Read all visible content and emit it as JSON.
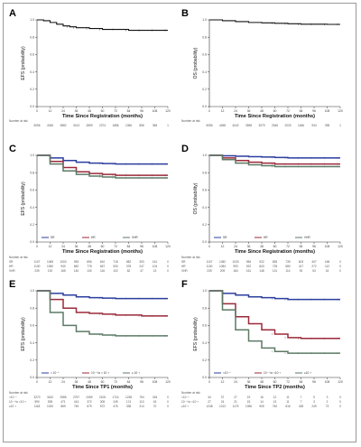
{
  "colors": {
    "black": "#111111",
    "blue": "#2b3f9e",
    "red": "#9b2a3a",
    "green": "#5c7a66",
    "gray": "#777777"
  },
  "chart_data": [
    {
      "panel": "A",
      "type": "line",
      "ylabel": "EFS (probability)",
      "xlabel": "Time Since Registration (months)",
      "ylim": [
        0,
        1
      ],
      "xlim": [
        0,
        120
      ],
      "x_ticks": [
        "0",
        "12",
        "24",
        "36",
        "48",
        "60",
        "72",
        "84",
        "96",
        "108",
        "120"
      ],
      "y_ticks": [
        "0.0",
        "0.2",
        "0.4",
        "0.6",
        "0.8",
        "1.0"
      ],
      "series": [
        {
          "color": "black",
          "x": [
            0,
            6,
            12,
            18,
            24,
            30,
            36,
            48,
            60,
            72,
            84,
            96,
            108,
            120
          ],
          "y": [
            1.0,
            0.99,
            0.97,
            0.95,
            0.93,
            0.92,
            0.91,
            0.9,
            0.89,
            0.89,
            0.88,
            0.88,
            0.88,
            0.88
          ]
        }
      ],
      "risk_title": "Number at risk",
      "risk_rows": [
        {
          "label": "",
          "values": [
            "5056",
            "4346",
            "3882",
            "3413",
            "2899",
            "2374",
            "1886",
            "1356",
            "856",
            "365",
            "1"
          ]
        }
      ]
    },
    {
      "panel": "B",
      "type": "line",
      "ylabel": "OS (probability)",
      "xlabel": "Time Since Registration (months)",
      "ylim": [
        0,
        1
      ],
      "xlim": [
        0,
        120
      ],
      "x_ticks": [
        "0",
        "12",
        "24",
        "36",
        "48",
        "60",
        "72",
        "84",
        "96",
        "108",
        "120"
      ],
      "y_ticks": [
        "0.0",
        "0.2",
        "0.4",
        "0.6",
        "0.8",
        "1.0"
      ],
      "series": [
        {
          "color": "black",
          "x": [
            0,
            12,
            24,
            36,
            48,
            60,
            72,
            84,
            96,
            108,
            120
          ],
          "y": [
            1.0,
            0.99,
            0.98,
            0.97,
            0.965,
            0.96,
            0.955,
            0.95,
            0.95,
            0.948,
            0.948
          ]
        }
      ],
      "risk_title": "Number at risk",
      "risk_rows": [
        {
          "label": "",
          "values": [
            "5056",
            "4458",
            "4042",
            "3598",
            "3079",
            "2546",
            "2025",
            "1466",
            "934",
            "398",
            "1"
          ]
        }
      ]
    },
    {
      "panel": "C",
      "type": "line",
      "ylabel": "EFS (probability)",
      "xlabel": "Time Since Registration (months)",
      "ylim": [
        0,
        1
      ],
      "xlim": [
        0,
        120
      ],
      "x_ticks": [
        "0",
        "12",
        "24",
        "36",
        "48",
        "60",
        "72",
        "84",
        "96",
        "108",
        "120"
      ],
      "y_ticks": [
        "0.0",
        "0.2",
        "0.4",
        "0.6",
        "0.8",
        "1.0"
      ],
      "legend": [
        "SR",
        "HR",
        "VHR"
      ],
      "series": [
        {
          "color": "blue",
          "x": [
            0,
            12,
            24,
            36,
            48,
            60,
            72,
            84,
            96,
            108,
            120
          ],
          "y": [
            1.0,
            0.97,
            0.94,
            0.92,
            0.91,
            0.905,
            0.9,
            0.9,
            0.9,
            0.9,
            0.9
          ]
        },
        {
          "color": "red",
          "x": [
            0,
            12,
            24,
            36,
            48,
            60,
            72,
            84,
            96,
            108,
            120
          ],
          "y": [
            1.0,
            0.93,
            0.86,
            0.81,
            0.79,
            0.78,
            0.77,
            0.77,
            0.77,
            0.77,
            0.77
          ]
        },
        {
          "color": "green",
          "x": [
            0,
            12,
            24,
            36,
            48,
            60,
            72,
            84,
            96,
            108,
            120
          ],
          "y": [
            1.0,
            0.9,
            0.82,
            0.78,
            0.76,
            0.75,
            0.74,
            0.74,
            0.74,
            0.74,
            0.74
          ]
        }
      ],
      "risk_title": "Number at risk",
      "risk_rows": [
        {
          "label": "SR",
          "values": [
            "1107",
            "1065",
            "1003",
            "953",
            "896",
            "810",
            "718",
            "582",
            "393",
            "161",
            "0"
          ]
        },
        {
          "label": "HR",
          "values": [
            "1130",
            "1050",
            "940",
            "862",
            "778",
            "667",
            "530",
            "378",
            "247",
            "104",
            "0"
          ]
        },
        {
          "label": "VHR",
          "values": [
            "239",
            "192",
            "165",
            "140",
            "130",
            "116",
            "102",
            "82",
            "47",
            "13",
            "0"
          ]
        }
      ]
    },
    {
      "panel": "D",
      "type": "line",
      "ylabel": "OS (probability)",
      "xlabel": "Time Since Registration (months)",
      "ylim": [
        0,
        1
      ],
      "xlim": [
        0,
        120
      ],
      "x_ticks": [
        "0",
        "12",
        "24",
        "36",
        "48",
        "60",
        "72",
        "84",
        "96",
        "108",
        "120"
      ],
      "y_ticks": [
        "0.0",
        "0.2",
        "0.4",
        "0.6",
        "0.8",
        "1.0"
      ],
      "legend": [
        "SR",
        "HR",
        "VHR"
      ],
      "series": [
        {
          "color": "blue",
          "x": [
            0,
            12,
            24,
            36,
            48,
            60,
            72,
            84,
            96,
            108,
            120
          ],
          "y": [
            1.0,
            0.995,
            0.99,
            0.985,
            0.98,
            0.975,
            0.97,
            0.97,
            0.97,
            0.97,
            0.97
          ]
        },
        {
          "color": "red",
          "x": [
            0,
            12,
            24,
            36,
            48,
            60,
            72,
            84,
            96,
            108,
            120
          ],
          "y": [
            1.0,
            0.97,
            0.94,
            0.92,
            0.91,
            0.9,
            0.9,
            0.9,
            0.9,
            0.9,
            0.9
          ]
        },
        {
          "color": "green",
          "x": [
            0,
            12,
            24,
            36,
            48,
            60,
            72,
            84,
            96,
            108,
            120
          ],
          "y": [
            1.0,
            0.95,
            0.91,
            0.89,
            0.88,
            0.87,
            0.87,
            0.87,
            0.87,
            0.87,
            0.87
          ]
        }
      ],
      "risk_title": "Number at risk",
      "risk_rows": [
        {
          "label": "SR",
          "values": [
            "1107",
            "1082",
            "1033",
            "984",
            "922",
            "835",
            "739",
            "603",
            "407",
            "168",
            "0"
          ]
        },
        {
          "label": "HR",
          "values": [
            "1130",
            "1084",
            "993",
            "922",
            "843",
            "725",
            "580",
            "417",
            "272",
            "112",
            "0"
          ]
        },
        {
          "label": "VHR",
          "values": [
            "239",
            "209",
            "184",
            "161",
            "148",
            "131",
            "114",
            "92",
            "53",
            "16",
            "0"
          ]
        }
      ]
    },
    {
      "panel": "E",
      "type": "line",
      "ylabel": "EFS (probability)",
      "xlabel": "Time Since TP1 (months)",
      "ylim": [
        0,
        1
      ],
      "xlim": [
        0,
        120
      ],
      "x_ticks": [
        "0",
        "12",
        "24",
        "36",
        "48",
        "60",
        "72",
        "84",
        "96",
        "108",
        "120"
      ],
      "y_ticks": [
        "0.0",
        "0.2",
        "0.4",
        "0.6",
        "0.8",
        "1.0"
      ],
      "legend": [
        "< 10⁻⁴",
        "10⁻⁴ to < 10⁻³",
        "≥ 10⁻³"
      ],
      "series": [
        {
          "color": "blue",
          "x": [
            0,
            12,
            24,
            36,
            48,
            60,
            72,
            84,
            96,
            108,
            120
          ],
          "y": [
            1.0,
            0.97,
            0.95,
            0.93,
            0.92,
            0.915,
            0.91,
            0.91,
            0.91,
            0.91,
            0.91
          ]
        },
        {
          "color": "red",
          "x": [
            0,
            12,
            24,
            36,
            48,
            60,
            72,
            84,
            96,
            108,
            120
          ],
          "y": [
            1.0,
            0.9,
            0.8,
            0.75,
            0.74,
            0.73,
            0.72,
            0.72,
            0.71,
            0.71,
            0.71
          ]
        },
        {
          "color": "green",
          "x": [
            0,
            12,
            24,
            36,
            48,
            60,
            72,
            84,
            96,
            108,
            120
          ],
          "y": [
            1.0,
            0.75,
            0.6,
            0.53,
            0.5,
            0.49,
            0.48,
            0.48,
            0.48,
            0.48,
            0.48
          ]
        }
      ],
      "risk_title": "Number at risk",
      "risk_rows": [
        {
          "label": "<10⁻⁴",
          "values": [
            "3270",
            "3162",
            "2985",
            "2757",
            "2459",
            "2105",
            "1724",
            "1238",
            "794",
            "318",
            "0"
          ]
        },
        {
          "label": "10⁻⁴ to <10⁻³",
          "values": [
            "590",
            "535",
            "471",
            "414",
            "372",
            "309",
            "249",
            "174",
            "113",
            "43",
            "0"
          ]
        },
        {
          "label": "≥10⁻³",
          "values": [
            "1118",
            "1020",
            "869",
            "749",
            "679",
            "572",
            "476",
            "338",
            "214",
            "70",
            "0"
          ]
        }
      ]
    },
    {
      "panel": "F",
      "type": "line",
      "ylabel": "EFS (probability)",
      "xlabel": "Time Since TP2 (months)",
      "ylim": [
        0,
        1
      ],
      "xlim": [
        0,
        120
      ],
      "x_ticks": [
        "0",
        "12",
        "24",
        "36",
        "48",
        "60",
        "72",
        "84",
        "96",
        "108",
        "120"
      ],
      "y_ticks": [
        "0.0",
        "0.2",
        "0.4",
        "0.6",
        "0.8",
        "1.0"
      ],
      "legend": [
        "<10⁻⁴",
        "10⁻⁴ to <10⁻³",
        "≥10⁻³"
      ],
      "series": [
        {
          "color": "blue",
          "x": [
            0,
            12,
            24,
            36,
            48,
            60,
            72,
            84,
            96,
            108,
            120
          ],
          "y": [
            1.0,
            0.97,
            0.95,
            0.93,
            0.92,
            0.91,
            0.9,
            0.9,
            0.9,
            0.9,
            0.9
          ]
        },
        {
          "color": "red",
          "x": [
            0,
            12,
            24,
            36,
            48,
            60,
            72,
            84,
            96,
            108,
            120
          ],
          "y": [
            1.0,
            0.85,
            0.7,
            0.62,
            0.55,
            0.5,
            0.46,
            0.45,
            0.45,
            0.45,
            0.45
          ]
        },
        {
          "color": "green",
          "x": [
            0,
            12,
            24,
            36,
            48,
            60,
            72,
            84,
            96,
            108,
            120
          ],
          "y": [
            1.0,
            0.78,
            0.55,
            0.42,
            0.34,
            0.3,
            0.28,
            0.28,
            0.28,
            0.28,
            0.28
          ]
        }
      ],
      "risk_title": "Number at risk",
      "risk_rows": [
        {
          "label": "<10⁻⁴",
          "values": [
            "44",
            "37",
            "27",
            "19",
            "16",
            "12",
            "11",
            "7",
            "5",
            "3",
            "0"
          ]
        },
        {
          "label": "10⁻⁴ to <10⁻³",
          "values": [
            "27",
            "24",
            "21",
            "15",
            "14",
            "13",
            "11",
            "7",
            "3",
            "2",
            "0"
          ]
        },
        {
          "label": "≥10⁻³",
          "values": [
            "1248",
            "1212",
            "1175",
            "1056",
            "905",
            "762",
            "616",
            "428",
            "249",
            "73",
            "0"
          ]
        }
      ]
    }
  ]
}
